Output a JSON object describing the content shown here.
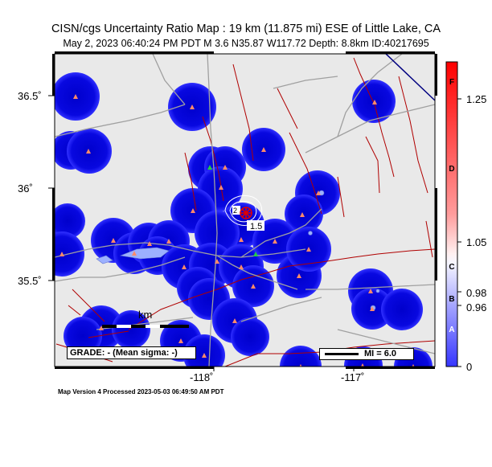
{
  "title": "CISN/cgs Uncertainty Ratio Map : 19 km (11.875 mi) ESE of Little Lake, CA",
  "subtitle": "May  2, 2023 06:40:24 PM PDT   M 3.6   N35.87 W117.72   Depth: 8.8km   ID:40217695",
  "lat_ticks": [
    "36.5˚",
    "36˚",
    "35.5˚"
  ],
  "lon_ticks": [
    "-118˚",
    "-117˚"
  ],
  "colorbar": {
    "ticks": [
      "1.25",
      "1.05",
      "0.98",
      "0.96",
      "0"
    ],
    "letters": [
      "F",
      "D",
      "C",
      "B",
      "A"
    ],
    "colors": [
      "#1a1aff",
      "#ffffff",
      "#ff0000"
    ]
  },
  "contour_labels": [
    "1.5",
    "2"
  ],
  "scale_label": "km",
  "grade_text": "GRADE: - (Mean sigma: -)",
  "mi_label": "MI = 6.0",
  "footer": "Map Version 4 Processed 2023-05-03 06:49:50 AM PDT",
  "map_colors": {
    "land": "#e9e9e9",
    "high_uncertainty": "#0000dd",
    "faults": "#b00000",
    "roads": "#999999",
    "stations": "#ff8060",
    "epicenter": "#e00000"
  }
}
